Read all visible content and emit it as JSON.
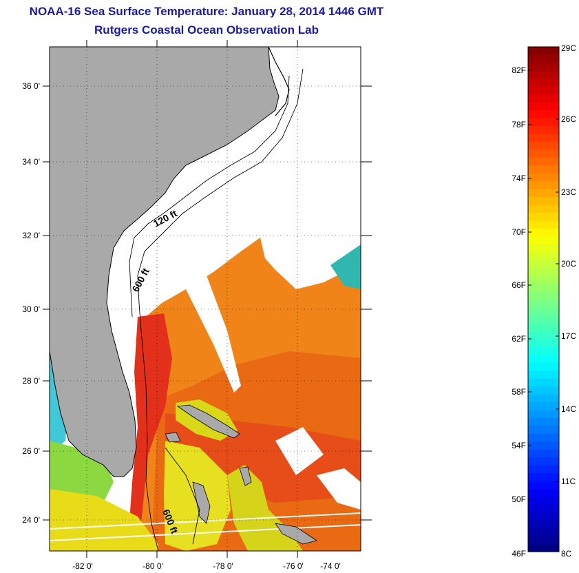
{
  "title": "NOAA-16 Sea Surface Temperature:  January 28, 2014 1446 GMT",
  "subtitle": "Rutgers Coastal Ocean Observation Lab",
  "map": {
    "lat_labels": [
      "36 0'",
      "34 0'",
      "32 0'",
      "30 0'",
      "28 0'",
      "26 0'",
      "24 0'"
    ],
    "lon_labels": [
      "-82 0'",
      "-80 0'",
      "-78 0'",
      "-76 0'",
      "-74 0'"
    ],
    "contour_labels": [
      "120 ft",
      "600 ft",
      "600 ft"
    ],
    "land_color": "#a9a9a9"
  },
  "colorbar": {
    "fahrenheit_labels": [
      "82F",
      "78F",
      "74F",
      "70F",
      "66F",
      "62F",
      "58F",
      "54F",
      "50F",
      "46F"
    ],
    "celsius_labels": [
      "29C",
      "26C",
      "23C",
      "20C",
      "17C",
      "14C",
      "11C",
      "8C"
    ],
    "scale": "jet"
  }
}
